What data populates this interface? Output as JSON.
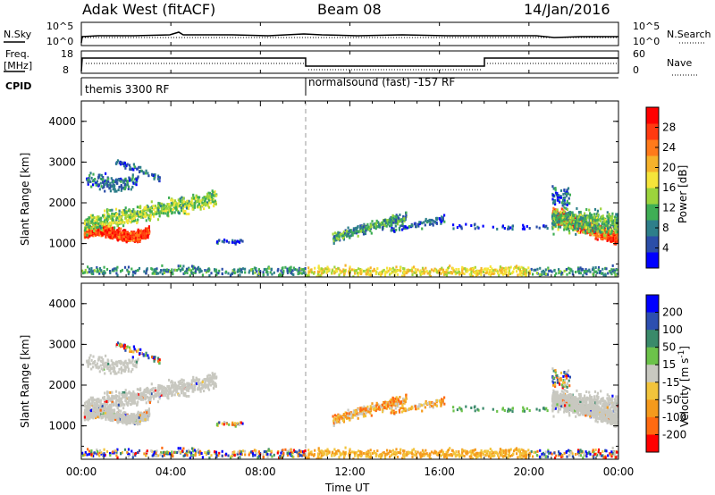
{
  "header": {
    "site": "Adak West (fitACF)",
    "beam": "Beam 08",
    "date": "14/Jan/2016"
  },
  "left_labels": {
    "nsky": "N.Sky",
    "freq_line1": "Freq.",
    "freq_line2": "[MHz]",
    "cpid": "CPID"
  },
  "right_labels": {
    "nsearch": "N.Search",
    "nave": "Nave"
  },
  "noise_panel": {
    "left_ticks": [
      "10^5",
      "10^0"
    ],
    "right_ticks": [
      "10^5",
      "10^0"
    ]
  },
  "freq_panel": {
    "left_ticks": [
      "18",
      "8"
    ],
    "right_ticks": [
      "60",
      "0"
    ]
  },
  "cpid_panel": {
    "segments": [
      {
        "label": "themis 3300 RF",
        "start_hour": 0,
        "end_hour": 10
      },
      {
        "label": "normalsound (fast) -157 RF",
        "start_hour": 10,
        "end_hour": 24
      }
    ]
  },
  "chart_data": [
    {
      "type": "heatmap",
      "panel": "power",
      "ylabel": "Slant Range [km]",
      "ylim": [
        180,
        4500
      ],
      "xlim": [
        0,
        24
      ],
      "y_ticks": [
        "1000",
        "2000",
        "3000",
        "4000"
      ],
      "colorbar_label": "Power [dB]",
      "colorbar_ticks": [
        "28",
        "24",
        "20",
        "16",
        "12",
        "8",
        "4"
      ],
      "colorbar_colors": [
        "#0000ff",
        "#2b4ea8",
        "#2e7f8a",
        "#3fae55",
        "#9cd43c",
        "#f5e43a",
        "#f6b22a",
        "#ff7a1a",
        "#ff3a10",
        "#ff0000"
      ],
      "colorbar_range": [
        0,
        32
      ]
    },
    {
      "type": "heatmap",
      "panel": "velocity",
      "ylabel": "Slant Range [km]",
      "xlabel": "Time UT",
      "ylim": [
        180,
        4500
      ],
      "xlim": [
        0,
        24
      ],
      "y_ticks": [
        "1000",
        "2000",
        "3000",
        "4000"
      ],
      "x_ticks": [
        "00:00",
        "04:00",
        "08:00",
        "12:00",
        "16:00",
        "20:00",
        "00:00"
      ],
      "colorbar_label": "Velocity [m s^-1]",
      "colorbar_ticks": [
        "200",
        "100",
        "50",
        "15",
        "-15",
        "-50",
        "-100",
        "-200"
      ],
      "colorbar_colors": [
        "#0000ff",
        "#2d4fb0",
        "#3a8a6a",
        "#6cc24a",
        "#c8c8c0",
        "#f2c43c",
        "#f59a1c",
        "#ff6a10",
        "#ff0000"
      ]
    }
  ]
}
